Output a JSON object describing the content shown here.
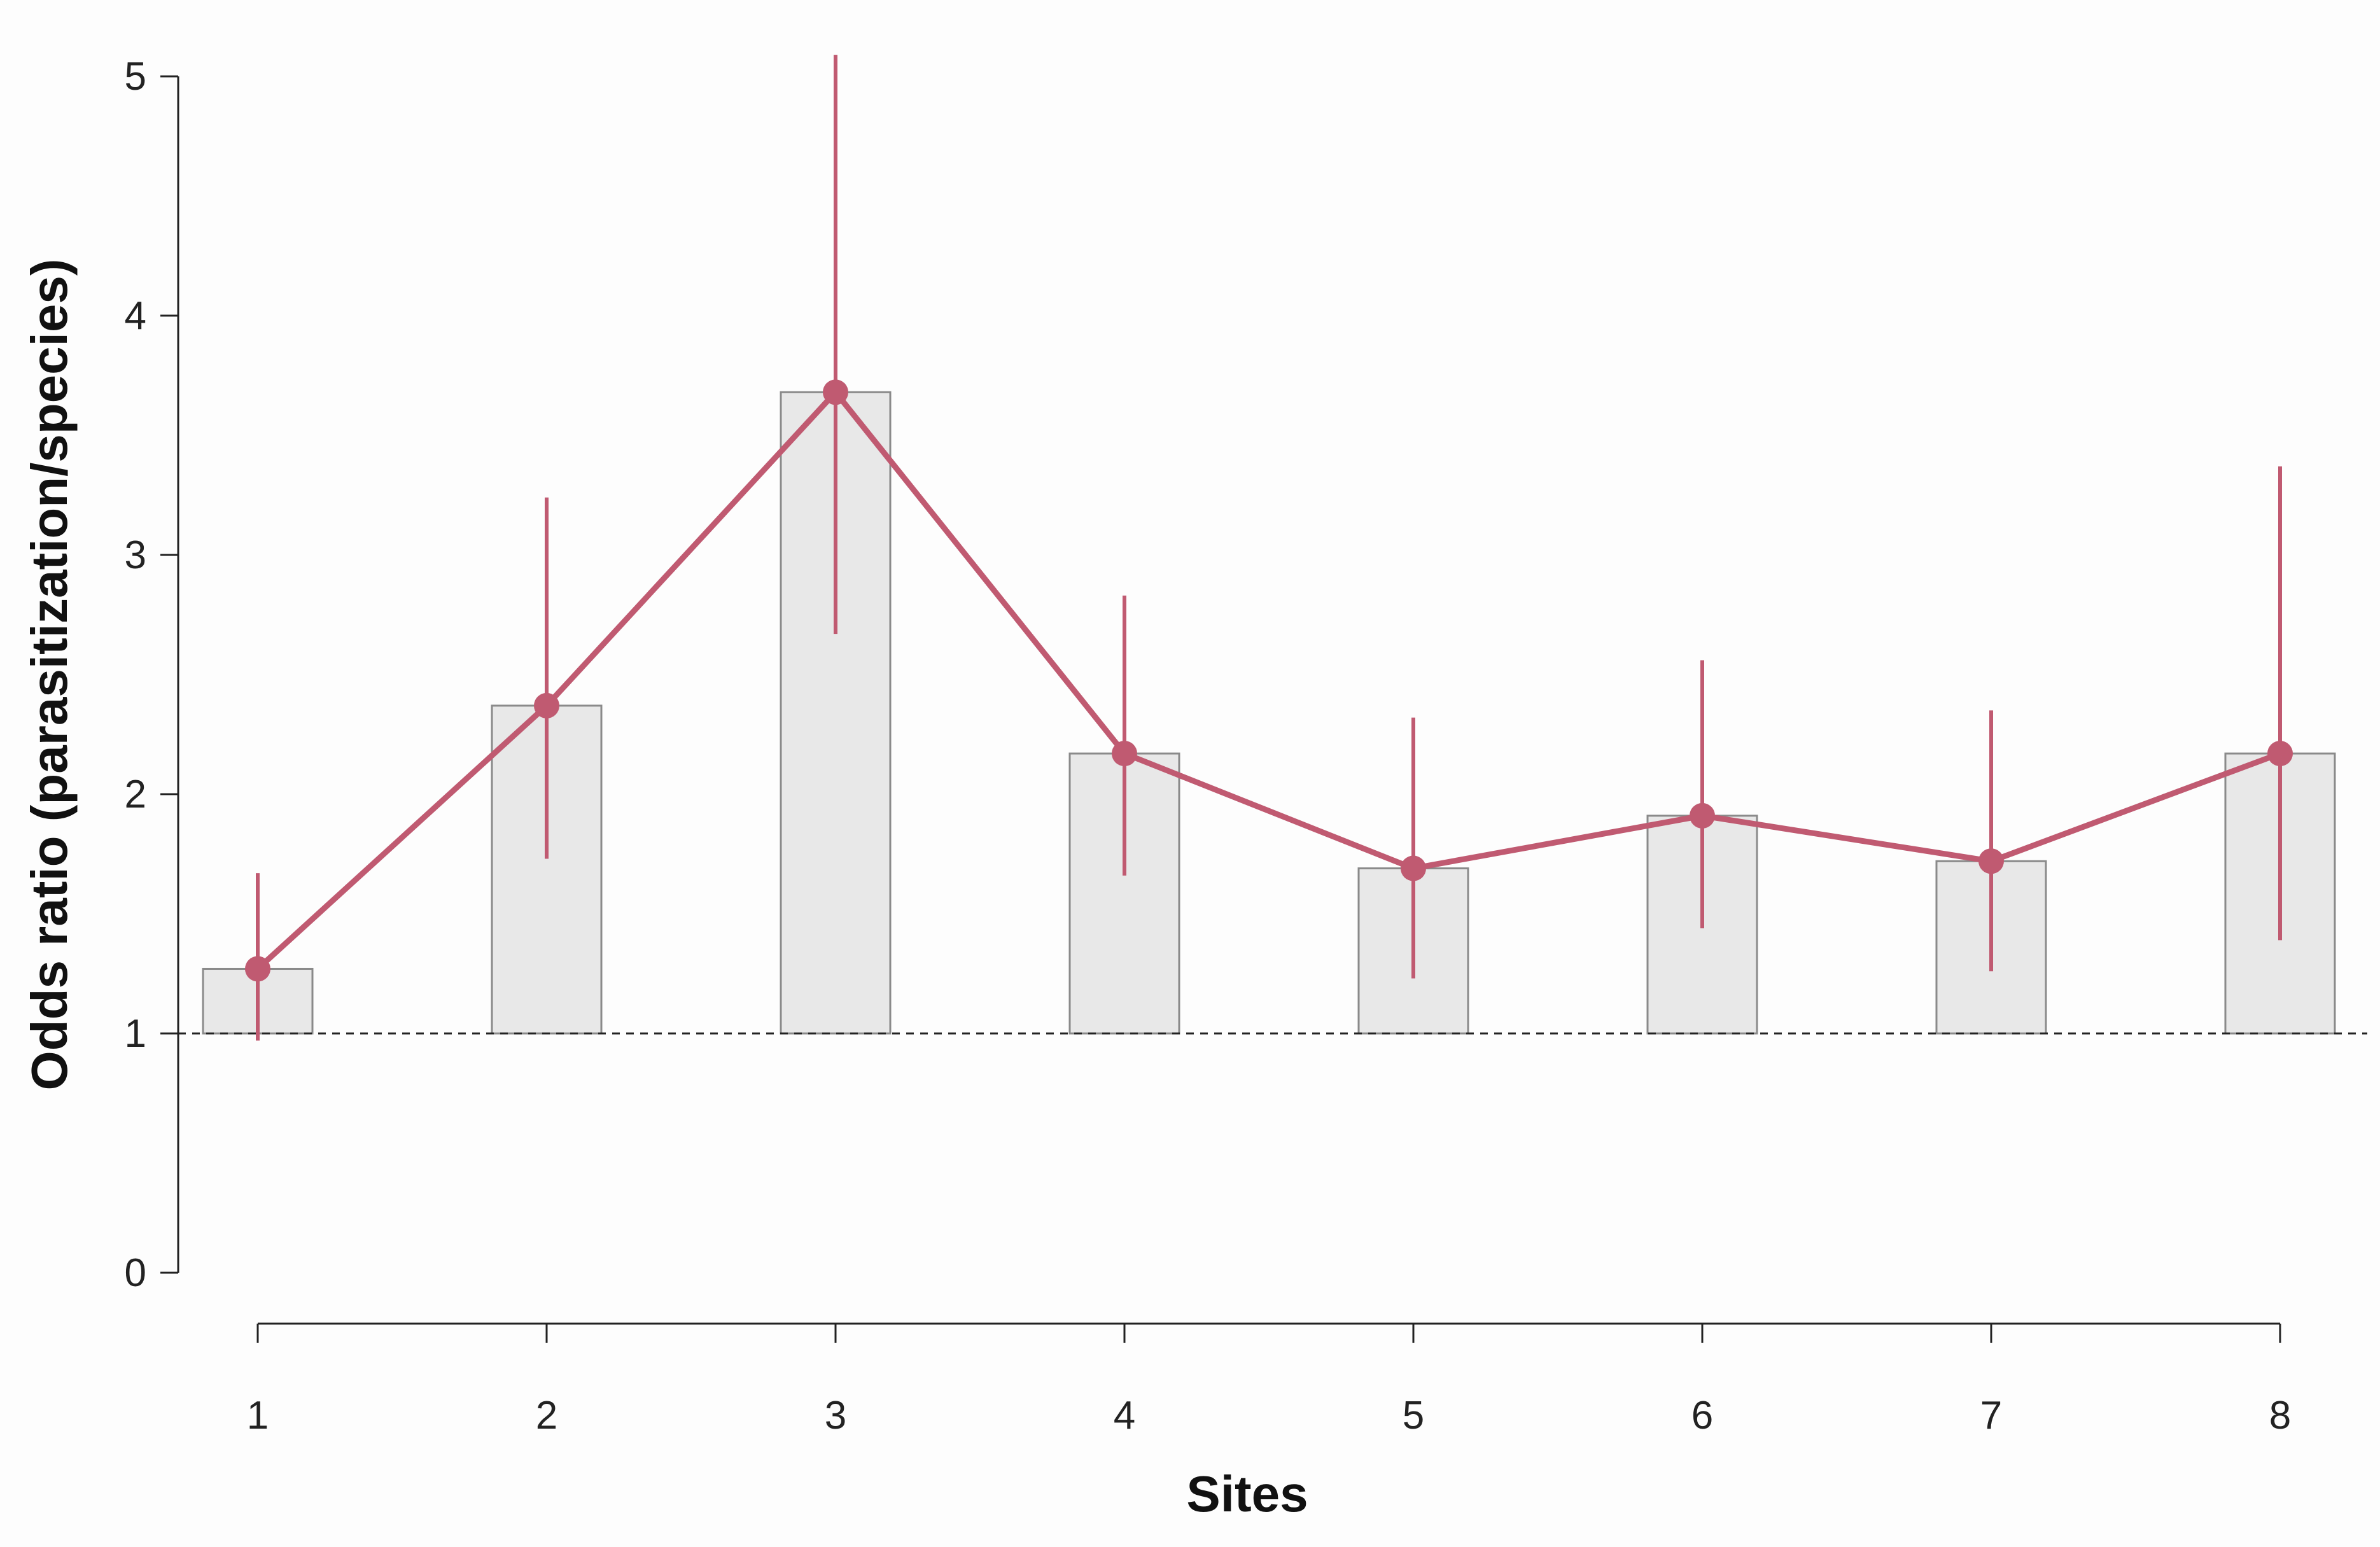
{
  "chart_data": {
    "type": "bar",
    "xlabel": "Sites",
    "ylabel": "Odds ratio (parasitization/species)",
    "categories": [
      "1",
      "2",
      "3",
      "4",
      "5",
      "6",
      "7",
      "8"
    ],
    "ylim": [
      0,
      5
    ],
    "yticks": [
      "0",
      "1",
      "2",
      "3",
      "4",
      "5"
    ],
    "reference_line": 1,
    "series": [
      {
        "render": "bar",
        "values": [
          1.27,
          2.37,
          3.68,
          2.17,
          1.69,
          1.91,
          1.72,
          2.17
        ]
      },
      {
        "render": "line-with-error-bars",
        "values": [
          1.27,
          2.37,
          3.68,
          2.17,
          1.69,
          1.91,
          1.72,
          2.17
        ],
        "lower": [
          0.97,
          1.73,
          2.67,
          1.66,
          1.23,
          1.44,
          1.26,
          1.39
        ],
        "upper": [
          1.67,
          3.24,
          5.09,
          2.83,
          2.32,
          2.56,
          2.35,
          3.37
        ]
      }
    ],
    "grid": false,
    "colors": {
      "bar_fill": "#e8e8e8",
      "bar_stroke": "#8a8a8a",
      "line": "#c05a71",
      "axis": "#222222",
      "reference": "#222222"
    }
  }
}
